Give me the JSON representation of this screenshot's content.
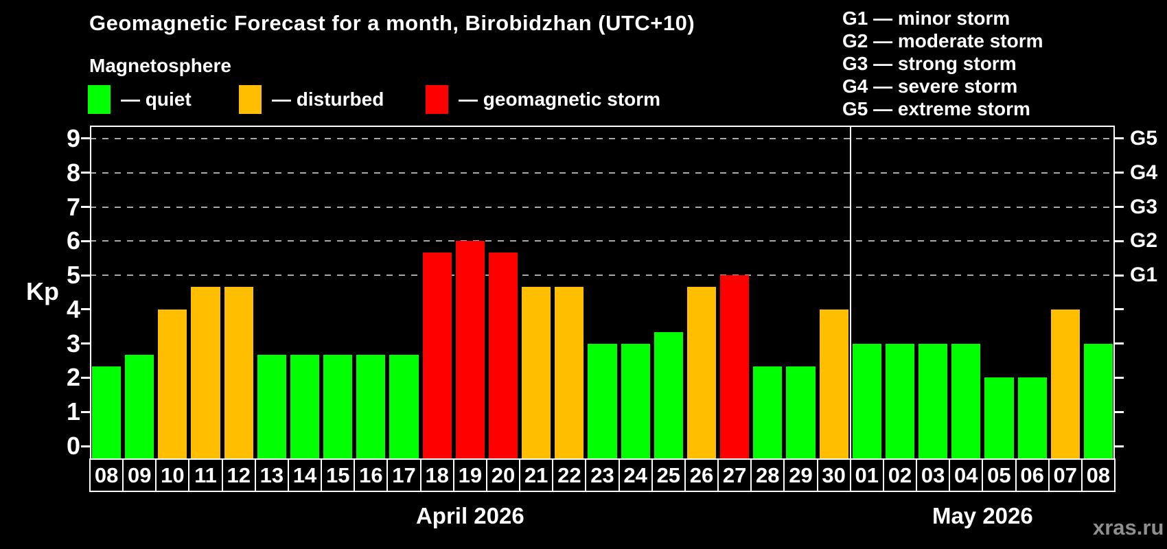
{
  "watermark": "xras.ru",
  "legend": {
    "items": [
      {
        "label": "— quiet",
        "status": "quiet"
      },
      {
        "label": "— disturbed",
        "status": "disturbed"
      },
      {
        "label": "— geomagnetic storm",
        "status": "storm"
      }
    ]
  },
  "g_legend": {
    "lines": [
      "G1 — minor storm",
      "G2 — moderate storm",
      "G3 — strong storm",
      "G4 — severe storm",
      "G5 — extreme storm"
    ]
  },
  "chart_data": {
    "type": "bar",
    "title": "Geomagnetic Forecast for a month, Birobidzhan (UTC+10)",
    "subtitle": "Magnetosphere",
    "ylabel": "Kp",
    "ylim": [
      0,
      9
    ],
    "y_ticks": [
      0,
      1,
      2,
      3,
      4,
      5,
      6,
      7,
      8,
      9
    ],
    "gridline_levels": [
      5,
      6,
      7,
      8,
      9
    ],
    "right_axis": {
      "5": "G1",
      "6": "G2",
      "7": "G3",
      "8": "G4",
      "9": "G5"
    },
    "grid": "horizontal dashed at storm levels only",
    "legend_position": "top-left",
    "categories": [
      "08",
      "09",
      "10",
      "11",
      "12",
      "13",
      "14",
      "15",
      "16",
      "17",
      "18",
      "19",
      "20",
      "21",
      "22",
      "23",
      "24",
      "25",
      "26",
      "27",
      "28",
      "29",
      "30",
      "01",
      "02",
      "03",
      "04",
      "05",
      "06",
      "07",
      "08"
    ],
    "values": [
      2.33,
      2.67,
      4,
      4.67,
      4.67,
      2.67,
      2.67,
      2.67,
      2.67,
      2.67,
      5.67,
      6,
      5.67,
      4.67,
      4.67,
      3,
      3,
      3.33,
      4.67,
      5,
      2.33,
      2.33,
      4,
      3,
      3,
      3,
      3,
      2,
      2,
      4,
      3
    ],
    "status": [
      "quiet",
      "quiet",
      "disturbed",
      "disturbed",
      "disturbed",
      "quiet",
      "quiet",
      "quiet",
      "quiet",
      "quiet",
      "storm",
      "storm",
      "storm",
      "disturbed",
      "disturbed",
      "quiet",
      "quiet",
      "quiet",
      "disturbed",
      "storm",
      "quiet",
      "quiet",
      "disturbed",
      "quiet",
      "quiet",
      "quiet",
      "quiet",
      "quiet",
      "quiet",
      "disturbed",
      "quiet"
    ],
    "status_colors": {
      "quiet": "#00ff00",
      "disturbed": "#ffbf00",
      "storm": "#ff0000"
    },
    "month_groups": [
      {
        "label": "April 2026",
        "start": 0,
        "count": 23
      },
      {
        "label": "May 2026",
        "start": 23,
        "count": 8
      }
    ]
  }
}
